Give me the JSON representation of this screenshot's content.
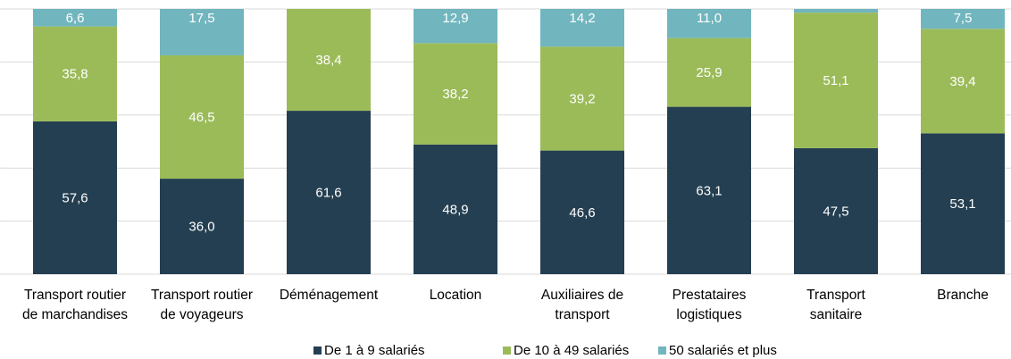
{
  "chart_data": {
    "type": "stacked_bar",
    "categories": [
      "Transport routier\nde marchandises",
      "Transport routier\nde voyageurs",
      "Déménagement",
      "Location",
      "Auxiliaires de\ntransport",
      "Prestataires\nlogistiques",
      "Transport\nsanitaire",
      "Branche"
    ],
    "series": [
      {
        "name": "De 1 à 9 salariés",
        "color": "#243f51",
        "values": [
          57.6,
          36.0,
          61.6,
          48.9,
          46.6,
          63.1,
          47.5,
          53.1
        ],
        "value_labels": [
          "57,6",
          "36,0",
          "61,6",
          "48,9",
          "46,6",
          "63,1",
          "47,5",
          "53,1"
        ]
      },
      {
        "name": "De 10 à 49 salariés",
        "color": "#9bbb59",
        "values": [
          35.8,
          46.5,
          38.4,
          38.2,
          39.2,
          25.9,
          51.1,
          39.4
        ],
        "value_labels": [
          "35,8",
          "46,5",
          "38,4",
          "38,2",
          "39,2",
          "25,9",
          "51,1",
          "39,4"
        ]
      },
      {
        "name": "50 salariés et plus",
        "color": "#71b6be",
        "values": [
          6.6,
          17.5,
          0,
          12.9,
          14.2,
          11.0,
          1.4,
          7.5
        ],
        "value_labels": [
          "6,6",
          "17,5",
          null,
          "12,9",
          "14,2",
          "11,0",
          null,
          "7,5"
        ]
      }
    ],
    "ylim": [
      0,
      100
    ],
    "yticks": [
      0,
      20,
      40,
      60,
      80,
      100
    ],
    "grid": true
  }
}
